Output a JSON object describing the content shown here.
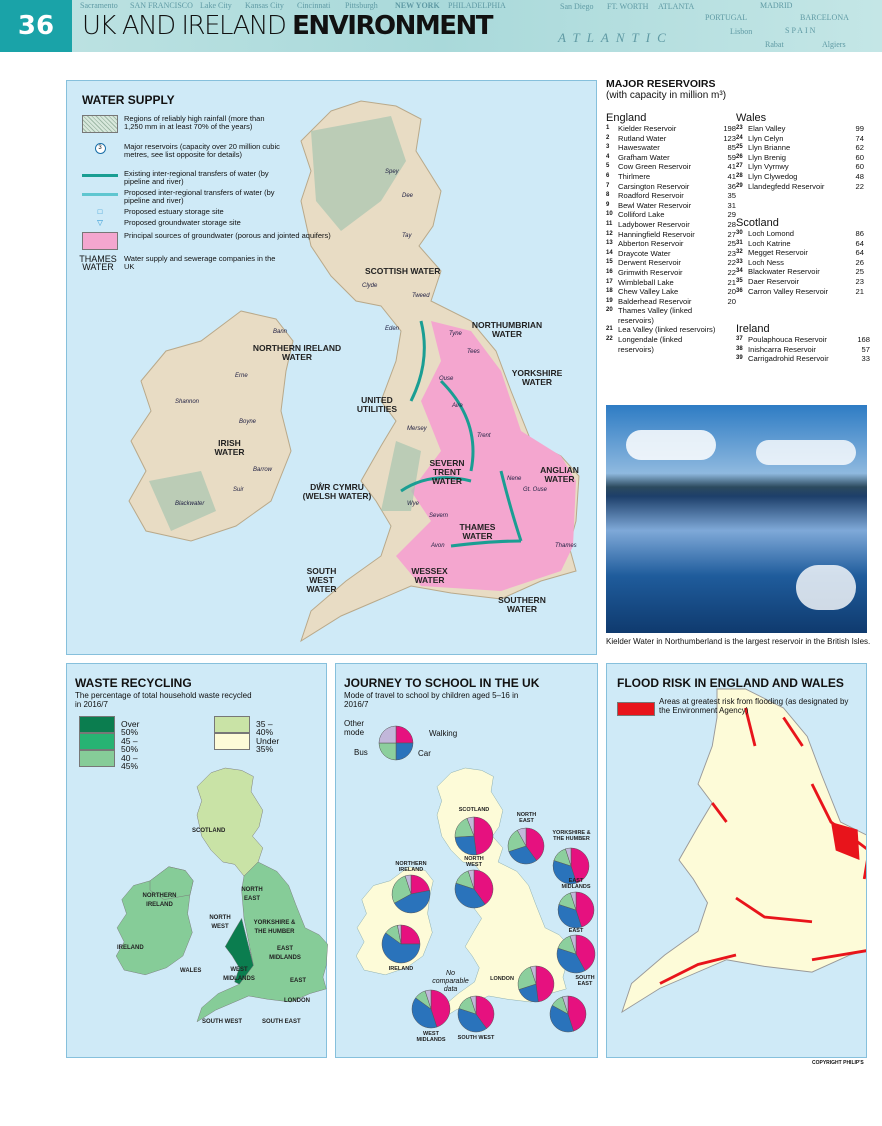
{
  "header": {
    "page_number": "36",
    "title_light": "UK AND IRELAND",
    "title_bold": "ENVIRONMENT",
    "background_labels": [
      "SAN FRANCISCO",
      "Sacramento",
      "Lake City",
      "Kansas City",
      "Cincinnati",
      "Pittsburgh",
      "NEW YORK",
      "PHILADELPHIA",
      "San Diego",
      "FT. WORTH",
      "ATLANTA",
      "ATLANTIC",
      "MADRID",
      "PORTUGAL",
      "BARCELONA",
      "SPAIN",
      "Lisbon",
      "Rabat",
      "Algiers"
    ]
  },
  "water_supply": {
    "title": "WATER SUPPLY",
    "legend": [
      {
        "icon": "hatched-rainfall",
        "text": "Regions of reliably high rainfall (more than 1,250 mm in at least 70% of the years)"
      },
      {
        "icon": "reservoir-circle",
        "symbol": "3",
        "text": "Major reservoirs (capacity over 20 million cubic metres, see list opposite for details)"
      },
      {
        "icon": "arrow-existing",
        "text": "Existing inter-regional transfers of water (by pipeline and river)"
      },
      {
        "icon": "arrow-proposed",
        "text": "Proposed inter-regional transfers of water (by pipeline and river)"
      },
      {
        "icon": "square-estuary",
        "text": "Proposed estuary storage site"
      },
      {
        "icon": "triangle-groundwater",
        "text": "Proposed groundwater storage site"
      },
      {
        "icon": "pink-groundwater",
        "text": "Principal sources of groundwater (porous and jointed aquifers)"
      },
      {
        "icon": "company-label",
        "symbol": "THAMES WATER",
        "text": "Water supply and sewerage companies in the UK"
      }
    ],
    "companies": [
      "SCOTTISH WATER",
      "NORTHUMBRIAN WATER",
      "NORTHERN IRELAND WATER",
      "YORKSHIRE WATER",
      "UNITED UTILITIES",
      "IRISH WATER",
      "SEVERN TRENT WATER",
      "ANGLIAN WATER",
      "DŴR CYMRU (WELSH WATER)",
      "THAMES WATER",
      "WESSEX WATER",
      "SOUTH WEST WATER",
      "SOUTHERN WATER"
    ],
    "rivers": [
      "Spey",
      "Dee",
      "Tay",
      "Clyde",
      "Tweed",
      "Tyne",
      "Eden",
      "Tees",
      "Ouse",
      "Aire",
      "Trent",
      "Mersey",
      "Nene",
      "Gt. Ouse",
      "Wye",
      "Severn",
      "Avon",
      "Thames",
      "Bann",
      "Erne",
      "Shannon",
      "Boyne",
      "Barrow",
      "Suir",
      "Blackwater"
    ],
    "colors": {
      "sea": "#cfeaf7",
      "land": "#e8dcc4",
      "groundwater": "#f4a6cf",
      "transfer": "#1a9e93",
      "proposed": "#5fc6d0"
    }
  },
  "reservoirs": {
    "title": "MAJOR RESERVOIRS",
    "subtitle": "(with capacity in million m³)",
    "groups": [
      {
        "name": "England",
        "items": [
          [
            "1",
            "Kielder Reservoir",
            "198"
          ],
          [
            "2",
            "Rutland Water",
            "123"
          ],
          [
            "3",
            "Haweswater",
            "85"
          ],
          [
            "4",
            "Grafham Water",
            "59"
          ],
          [
            "5",
            "Cow Green Reservoir",
            "41"
          ],
          [
            "6",
            "Thirlmere",
            "41"
          ],
          [
            "7",
            "Carsington Reservoir",
            "36"
          ],
          [
            "8",
            "Roadford Reservoir",
            "35"
          ],
          [
            "9",
            "Bewl Water Reservoir",
            "31"
          ],
          [
            "10",
            "Colliford Lake",
            "29"
          ],
          [
            "11",
            "Ladybower Reservoir",
            "28"
          ],
          [
            "12",
            "Hanningfield Reservoir",
            "27"
          ],
          [
            "13",
            "Abberton Reservoir",
            "25"
          ],
          [
            "14",
            "Draycote Water",
            "23"
          ],
          [
            "15",
            "Derwent Reservoir",
            "22"
          ],
          [
            "16",
            "Grimwith Reservoir",
            "22"
          ],
          [
            "17",
            "Wimbleball Lake",
            "21"
          ],
          [
            "18",
            "Chew Valley Lake",
            "20"
          ],
          [
            "19",
            "Balderhead Reservoir",
            "20"
          ],
          [
            "20",
            "Thames Valley (linked reservoirs)",
            ""
          ],
          [
            "21",
            "Lea Valley (linked reservoirs)",
            ""
          ],
          [
            "22",
            "Longendale (linked reservoirs)",
            ""
          ]
        ]
      },
      {
        "name": "Wales",
        "items": [
          [
            "23",
            "Elan Valley",
            "99"
          ],
          [
            "24",
            "Llyn Celyn",
            "74"
          ],
          [
            "25",
            "Llyn Brianne",
            "62"
          ],
          [
            "26",
            "Llyn Brenig",
            "60"
          ],
          [
            "27",
            "Llyn Vyrnwy",
            "60"
          ],
          [
            "28",
            "Llyn Clywedog",
            "48"
          ],
          [
            "29",
            "Llandegfedd Reservoir",
            "22"
          ]
        ]
      },
      {
        "name": "Scotland",
        "items": [
          [
            "30",
            "Loch Lomond",
            "86"
          ],
          [
            "31",
            "Loch Katrine",
            "64"
          ],
          [
            "32",
            "Megget Reservoir",
            "64"
          ],
          [
            "33",
            "Loch Ness",
            "26"
          ],
          [
            "34",
            "Blackwater Reservoir",
            "25"
          ],
          [
            "35",
            "Daer Reservoir",
            "23"
          ],
          [
            "36",
            "Carron Valley Reservoir",
            "21"
          ]
        ]
      },
      {
        "name": "Ireland",
        "items": [
          [
            "37",
            "Poulaphouca Reservoir",
            "168"
          ],
          [
            "38",
            "Inishcarra Reservoir",
            "57"
          ],
          [
            "39",
            "Carrigadrohid Reservoir",
            "33"
          ]
        ]
      }
    ]
  },
  "photo": {
    "caption": "Kielder Water in Northumberland is the largest reservoir in the British Isles."
  },
  "waste": {
    "title": "WASTE RECYCLING",
    "subtitle": "The percentage of total household waste recycled in 2016/7",
    "legend": [
      {
        "label": "Over 50%",
        "color": "#0b7d4f"
      },
      {
        "label": "45 – 50%",
        "color": "#27b373"
      },
      {
        "label": "40 – 45%",
        "color": "#86cc98"
      },
      {
        "label": "35 – 40%",
        "color": "#c9e3a6"
      },
      {
        "label": "Under 35%",
        "color": "#fdfbd8"
      }
    ],
    "regions": [
      "SCOTLAND",
      "NORTHERN IRELAND",
      "IRELAND",
      "NORTH EAST",
      "NORTH WEST",
      "YORKSHIRE & THE HUMBER",
      "WALES",
      "WEST MIDLANDS",
      "EAST MIDLANDS",
      "EAST",
      "LONDON",
      "SOUTH WEST",
      "SOUTH EAST"
    ]
  },
  "journey": {
    "title": "JOURNEY TO SCHOOL IN THE UK",
    "subtitle": "Mode of travel to school by children aged 5–16 in 2016/7",
    "legend": {
      "other": "Other mode",
      "walking": "Walking",
      "bus": "Bus",
      "car": "Car"
    },
    "colors": {
      "walking": "#e6117f",
      "car": "#2a73bb",
      "bus": "#8ccf9d",
      "other": "#c2b7da"
    },
    "no_data": "No comparable data",
    "regions": [
      {
        "name": "SCOTLAND",
        "walking": 48,
        "car": 26,
        "bus": 20,
        "other": 6
      },
      {
        "name": "NORTH EAST",
        "walking": 40,
        "car": 30,
        "bus": 22,
        "other": 8
      },
      {
        "name": "YORKSHIRE & THE HUMBER",
        "walking": 45,
        "car": 35,
        "bus": 15,
        "other": 5
      },
      {
        "name": "NORTHERN IRELAND",
        "walking": 22,
        "car": 45,
        "bus": 28,
        "other": 5
      },
      {
        "name": "NORTH WEST",
        "walking": 40,
        "car": 40,
        "bus": 15,
        "other": 5
      },
      {
        "name": "EAST MIDLANDS",
        "walking": 45,
        "car": 35,
        "bus": 15,
        "other": 5
      },
      {
        "name": "IRELAND",
        "walking": 25,
        "car": 60,
        "bus": 12,
        "other": 3
      },
      {
        "name": "EAST",
        "walking": 42,
        "car": 38,
        "bus": 15,
        "other": 5
      },
      {
        "name": "LONDON",
        "walking": 48,
        "car": 22,
        "bus": 25,
        "other": 5
      },
      {
        "name": "WEST MIDLANDS",
        "walking": 45,
        "car": 40,
        "bus": 10,
        "other": 5
      },
      {
        "name": "SOUTH WEST",
        "walking": 40,
        "car": 40,
        "bus": 15,
        "other": 5
      },
      {
        "name": "SOUTH EAST",
        "walking": 45,
        "car": 38,
        "bus": 12,
        "other": 5
      }
    ]
  },
  "flood": {
    "title": "FLOOD RISK IN ENGLAND AND WALES",
    "legend": "Areas at greatest risk from flooding (as designated by the Environment Agency)",
    "color": "#e8141b"
  },
  "copyright": "COPYRIGHT PHILIP'S"
}
